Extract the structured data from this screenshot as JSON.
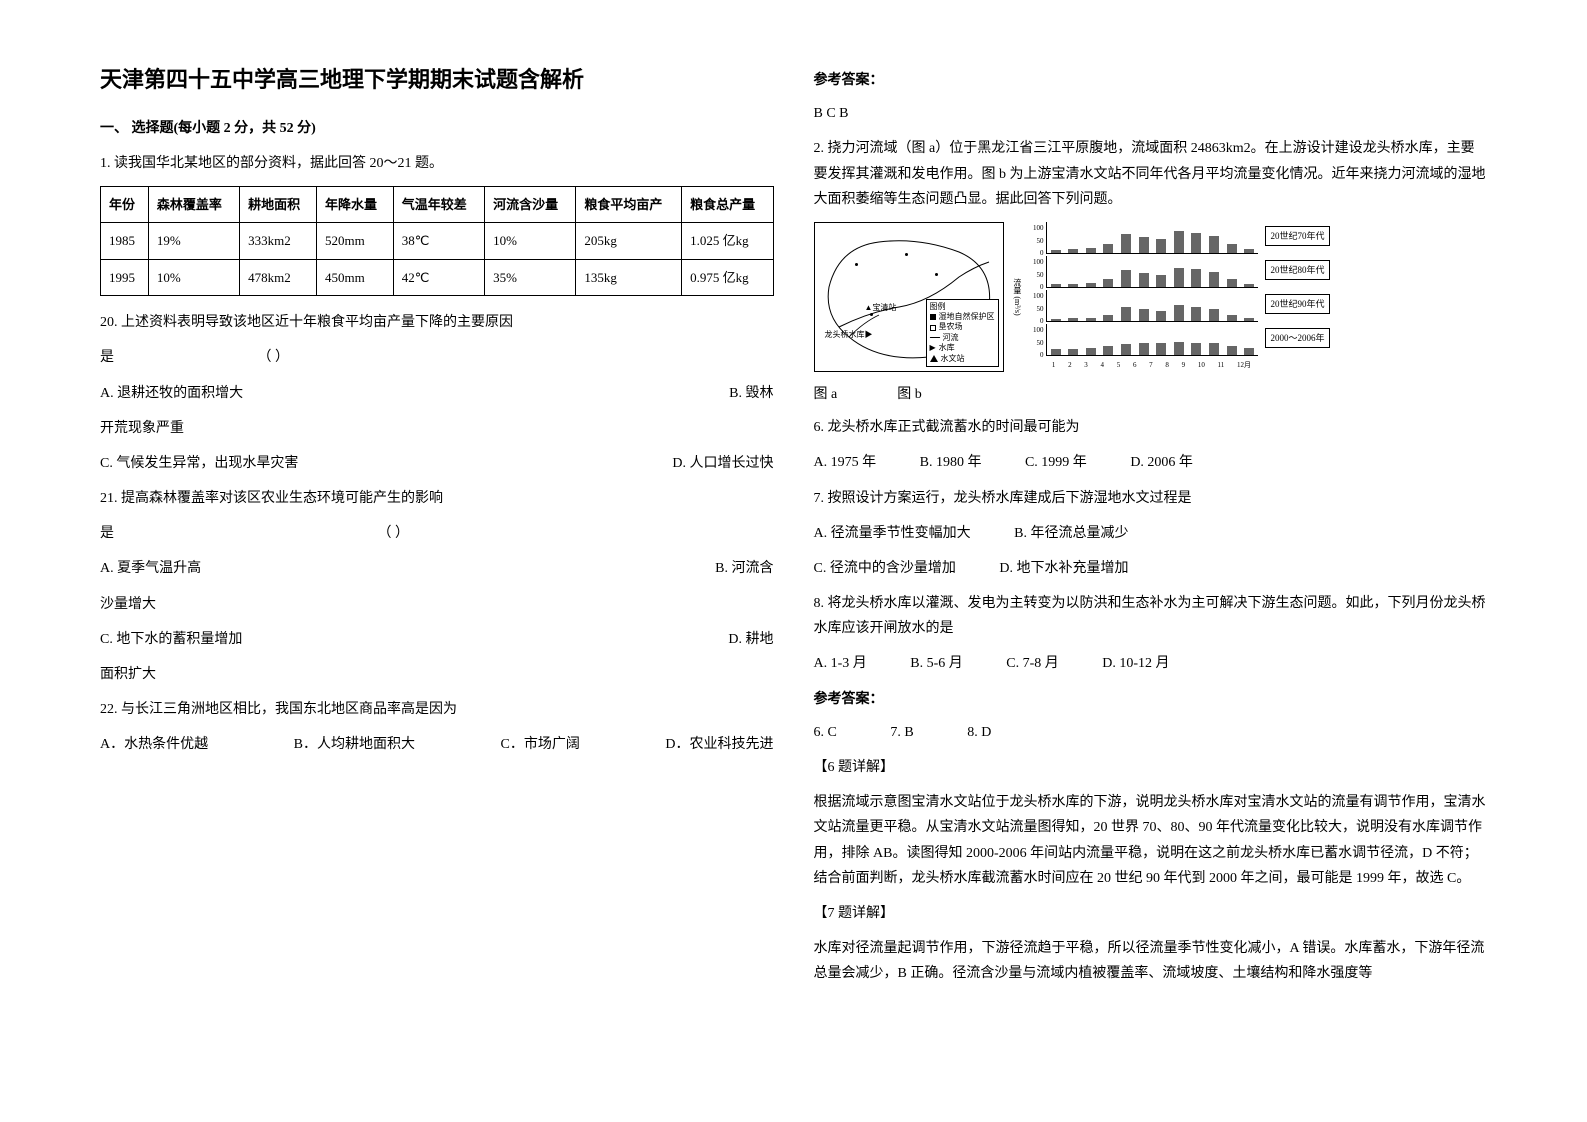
{
  "title": "天津第四十五中学高三地理下学期期末试题含解析",
  "section1_head": "一、 选择题(每小题 2 分，共 52 分)",
  "q1_intro": "1. 读我国华北某地区的部分资料，据此回答 20～21 题。",
  "table": {
    "columns": [
      "年份",
      "森林覆盖率",
      "耕地面积",
      "年降水量",
      "气温年较差",
      "河流含沙量",
      "粮食平均亩产",
      "粮食总产量"
    ],
    "rows": [
      [
        "1985",
        "19%",
        "333km2",
        "520mm",
        "38℃",
        "10%",
        "205kg",
        "1.025 亿kg"
      ],
      [
        "1995",
        "10%",
        "478km2",
        "450mm",
        "42℃",
        "35%",
        "135kg",
        "0.975 亿kg"
      ]
    ]
  },
  "q20": {
    "stem_a": "20. 上述资料表明导致该地区近十年粮食平均亩产量下降的主要原因",
    "stem_b": "是",
    "paren": "（       ）",
    "optA": "A. 退耕还牧的面积增大",
    "optB": "B. 毁林",
    "optB_tail": "开荒现象严重",
    "optC": "C. 气候发生异常，出现水旱灾害",
    "optD": "D. 人口增长过快"
  },
  "q21": {
    "stem_a": "21. 提高森林覆盖率对该区农业生态环境可能产生的影响",
    "stem_b": "是",
    "paren": "（       ）",
    "optA": "A. 夏季气温升高",
    "optB": "B. 河流含",
    "optB_tail": "沙量增大",
    "optC": "C. 地下水的蓄积量增加",
    "optD": "D. 耕地",
    "optD_tail": "面积扩大"
  },
  "q22": {
    "stem": "22.  与长江三角洲地区相比，我国东北地区商品率高是因为",
    "optA": "A．水热条件优越",
    "optB": "B．人均耕地面积大",
    "optC": "C．市场广阔",
    "optD": "D．农业科技先进"
  },
  "answer_head": "参考答案：",
  "answer1": "B  C  B",
  "q2_intro": "2. 挠力河流域（图  a）位于黑龙江省三江平原腹地，流域面积 24863km2。在上游设计建设龙头桥水库，主要要发挥其灌溉和发电作用。图 b 为上游宝清水文站不同年代各月平均流量变化情况。近年来挠力河流域的湿地大面积萎缩等生态问题凸显。据此回答下列问题。",
  "map": {
    "legend_title": "图例",
    "legend_items": [
      "湿地自然保护区",
      "垦农场",
      "河流",
      "水库",
      "水文站"
    ],
    "labels": {
      "baoqing": "宝清站",
      "longtou": "龙头桥水库"
    }
  },
  "charts": {
    "y_label": "流量 (m³/s)",
    "decades": [
      "20世纪70年代",
      "20世纪80年代",
      "20世纪90年代",
      "2000～2006年"
    ],
    "y_ticks": [
      "100",
      "50",
      "0"
    ],
    "x_ticks": [
      "1",
      "2",
      "3",
      "4",
      "5",
      "6",
      "7",
      "8",
      "9",
      "10",
      "11",
      "12月"
    ],
    "series": {
      "d70": [
        10,
        12,
        15,
        30,
        60,
        50,
        45,
        70,
        65,
        55,
        30,
        12
      ],
      "d80": [
        8,
        10,
        12,
        25,
        55,
        45,
        40,
        62,
        58,
        48,
        25,
        10
      ],
      "d90": [
        6,
        8,
        10,
        20,
        45,
        38,
        32,
        50,
        45,
        38,
        20,
        8
      ],
      "d00": [
        18,
        20,
        22,
        28,
        35,
        38,
        40,
        42,
        40,
        38,
        30,
        22
      ]
    },
    "bar_color": "#666666",
    "ylim": [
      0,
      100
    ]
  },
  "caption_a": "图  a",
  "caption_b": "图 b",
  "q6": {
    "stem": "6.    龙头桥水库正式截流蓄水的时间最可能为",
    "optA": "A.   1975 年",
    "optB": "B.   1980 年",
    "optC": "C.   1999 年",
    "optD": "D.   2006 年"
  },
  "q7": {
    "stem": "7.    按照设计方案运行，龙头桥水库建成后下游湿地水文过程是",
    "optA": "A.   径流量季节性变幅加大",
    "optB": "B.   年径流总量减少",
    "optC": "C.   径流中的含沙量增加",
    "optD": "D.   地下水补充量增加"
  },
  "q8": {
    "stem": "8.    将龙头桥水库以灌溉、发电为主转变为以防洪和生态补水为主可解决下游生态问题。如此，下列月份龙头桥水库应该开闸放水的是",
    "optA": "A.   1-3 月",
    "optB": "B.   5-6 月",
    "optC": "C.   7-8 月",
    "optD": "D.   10-12 月"
  },
  "answer2_head": "参考答案：",
  "answer2_line": {
    "a6": "6. C",
    "a7": "7. B",
    "a8": "8. D"
  },
  "explain6_head": "【6 题详解】",
  "explain6_body": "根据流域示意图宝清水文站位于龙头桥水库的下游，说明龙头桥水库对宝清水文站的流量有调节作用，宝清水文站流量更平稳。从宝清水文站流量图得知，20 世界 70、80、90 年代流量变化比较大，说明没有水库调节作用，排除 AB。读图得知 2000-2006 年间站内流量平稳，说明在这之前龙头桥水库已蓄水调节径流，D 不符；结合前面判断，龙头桥水库截流蓄水时间应在 20 世纪 90 年代到 2000 年之间，最可能是 1999 年，故选 C。",
  "explain7_head": "【7 题详解】",
  "explain7_body": "水库对径流量起调节作用，下游径流趋于平稳，所以径流量季节性变化减小，A 错误。水库蓄水，下游年径流总量会减少，B 正确。径流含沙量与流域内植被覆盖率、流域坡度、土壤结构和降水强度等"
}
